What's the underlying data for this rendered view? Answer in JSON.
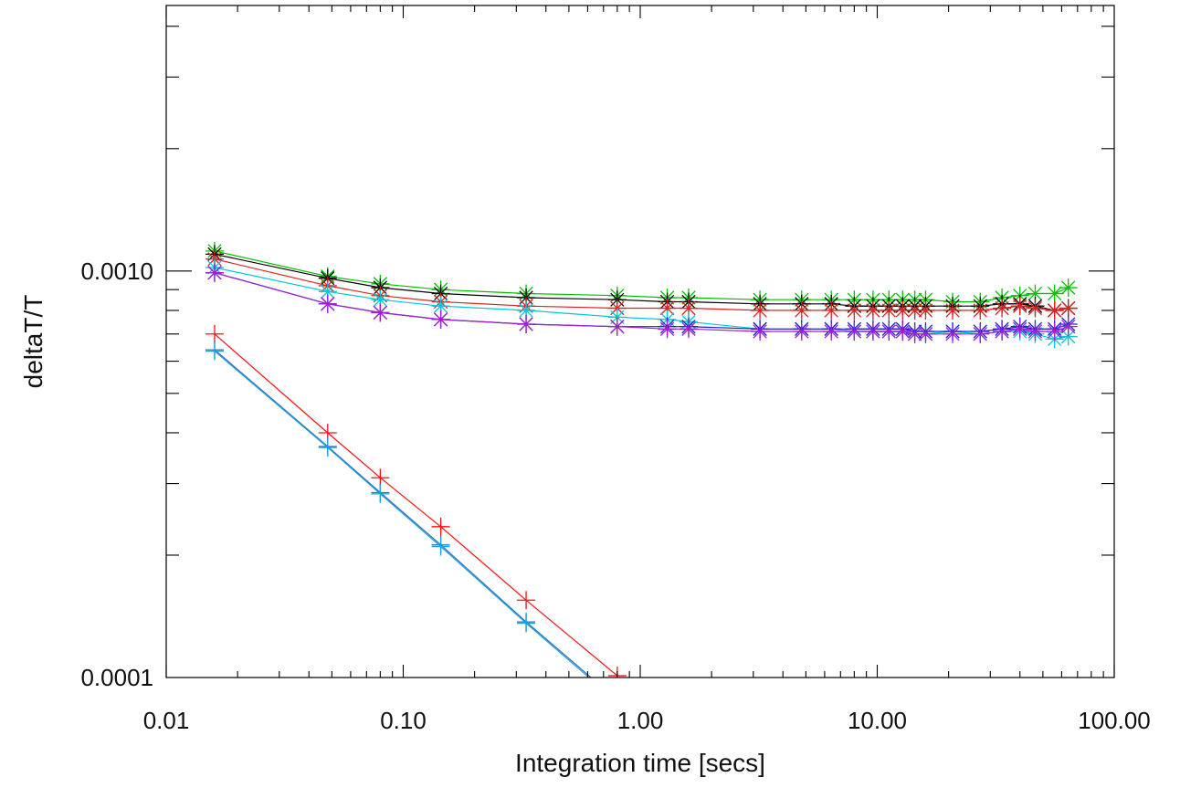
{
  "chart_data": {
    "type": "line",
    "title": "",
    "xlabel": "Integration time [secs]",
    "ylabel": "deltaT/T",
    "xscale": "log",
    "yscale": "log",
    "xlim": [
      0.01,
      100
    ],
    "ylim": [
      0.0001,
      0.0045
    ],
    "x_tick_labels": [
      "0.01",
      "0.10",
      "1.00",
      "10.00",
      "100.00"
    ],
    "x_tick_values": [
      0.01,
      0.1,
      1,
      10,
      100
    ],
    "y_tick_labels": [
      "0.0001",
      "0.0010"
    ],
    "y_tick_values": [
      0.0001,
      0.001
    ],
    "grid": false,
    "legend": "none",
    "series": [
      {
        "color": "#00c000",
        "marker": "asterisk",
        "x": [
          0.016,
          0.048,
          0.08,
          0.144,
          0.33,
          0.8,
          1.3,
          1.6,
          3.2,
          4.8,
          6.4,
          8.0,
          9.6,
          11.2,
          12.8,
          14.4,
          16.0,
          20.8,
          27.2,
          33.6,
          40.0,
          46.4,
          56.0,
          64.0
        ],
        "y": [
          0.00112,
          0.00097,
          0.00093,
          0.0009,
          0.00088,
          0.00087,
          0.00086,
          0.00086,
          0.00085,
          0.00085,
          0.00085,
          0.00085,
          0.00085,
          0.00085,
          0.00085,
          0.00085,
          0.00085,
          0.00084,
          0.00084,
          0.00086,
          0.00087,
          0.00088,
          0.00088,
          0.00091
        ]
      },
      {
        "color": "#000000",
        "marker": "asterisk",
        "x": [
          0.016,
          0.048,
          0.08,
          0.144,
          0.33,
          0.8,
          1.3,
          1.6,
          3.2,
          4.8,
          6.4,
          8.0,
          9.6,
          11.2,
          12.8,
          14.4,
          16.0,
          20.8,
          27.2,
          33.6,
          40.0,
          46.4,
          56.0,
          64.0
        ],
        "y": [
          0.0011,
          0.00096,
          0.00091,
          0.00088,
          0.00086,
          0.00085,
          0.00084,
          0.00084,
          0.00083,
          0.00083,
          0.00083,
          0.00082,
          0.00082,
          0.00082,
          0.00082,
          0.00082,
          0.00082,
          0.00082,
          0.00082,
          0.00083,
          0.00083,
          0.00082,
          0.0008,
          0.00081
        ]
      },
      {
        "color": "#e02020",
        "marker": "asterisk",
        "x": [
          0.016,
          0.048,
          0.08,
          0.144,
          0.33,
          0.8,
          1.3,
          1.6,
          3.2,
          4.8,
          6.4,
          8.0,
          9.6,
          11.2,
          12.8,
          14.4,
          16.0,
          20.8,
          27.2,
          33.6,
          40.0,
          46.4,
          56.0,
          64.0
        ],
        "y": [
          0.00107,
          0.00092,
          0.00087,
          0.00084,
          0.00082,
          0.00081,
          0.00081,
          0.00081,
          0.0008,
          0.0008,
          0.0008,
          0.0008,
          0.0008,
          0.0008,
          0.0008,
          0.0008,
          0.0008,
          0.0008,
          0.0008,
          0.00081,
          0.00082,
          0.00081,
          0.0008,
          0.00081
        ]
      },
      {
        "color": "#00c8d8",
        "marker": "asterisk",
        "x": [
          0.016,
          0.048,
          0.08,
          0.144,
          0.33,
          0.8,
          1.3,
          1.6,
          3.2,
          4.8,
          6.4,
          8.0,
          9.6,
          11.2,
          12.8,
          14.4,
          16.0,
          20.8,
          27.2,
          33.6,
          40.0,
          46.4,
          56.0,
          64.0
        ],
        "y": [
          0.00102,
          0.00089,
          0.00085,
          0.00082,
          0.0008,
          0.00077,
          0.00076,
          0.00075,
          0.00072,
          0.00072,
          0.00072,
          0.00071,
          0.00071,
          0.00071,
          0.00071,
          0.0007,
          0.0007,
          0.00071,
          0.0007,
          0.00071,
          0.00071,
          0.0007,
          0.00068,
          0.00069
        ]
      },
      {
        "color": "#2020d8",
        "marker": "asterisk",
        "x": [
          0.016,
          0.048,
          0.08,
          0.144,
          0.33,
          0.8,
          1.3,
          1.6,
          3.2,
          4.8,
          6.4,
          8.0,
          9.6,
          11.2,
          12.8,
          14.4,
          16.0,
          20.8,
          27.2,
          33.6,
          40.0,
          46.4,
          56.0,
          64.0
        ],
        "y": [
          0.00099,
          0.00083,
          0.00079,
          0.00076,
          0.00074,
          0.00073,
          0.00073,
          0.00073,
          0.00072,
          0.00072,
          0.00072,
          0.00072,
          0.00072,
          0.00072,
          0.00072,
          0.00071,
          0.00071,
          0.00071,
          0.00071,
          0.00072,
          0.00073,
          0.00072,
          0.00072,
          0.00074
        ]
      },
      {
        "color": "#a020d0",
        "marker": "asterisk",
        "x": [
          0.016,
          0.048,
          0.08,
          0.144,
          0.33,
          0.8,
          1.3,
          1.6,
          3.2,
          4.8,
          6.4,
          8.0,
          9.6,
          11.2,
          12.8,
          14.4,
          16.0,
          20.8,
          27.2,
          33.6,
          40.0,
          46.4,
          56.0,
          64.0
        ],
        "y": [
          0.00099,
          0.00083,
          0.00079,
          0.00076,
          0.00074,
          0.00073,
          0.00072,
          0.00072,
          0.00071,
          0.00071,
          0.00071,
          0.00071,
          0.00071,
          0.00071,
          0.00071,
          0.0007,
          0.0007,
          0.0007,
          0.0007,
          0.00071,
          0.00072,
          0.00071,
          0.00071,
          0.00073
        ]
      },
      {
        "color": "#ff1010",
        "marker": "plus",
        "x": [
          0.016,
          0.048,
          0.08,
          0.144,
          0.33,
          0.8
        ],
        "y": [
          0.0007,
          0.0004,
          0.00031,
          0.000235,
          0.000155,
          0.000101
        ]
      },
      {
        "color": "#3070c0",
        "marker": "plus",
        "x": [
          0.016,
          0.048,
          0.08,
          0.144,
          0.33,
          0.8
        ],
        "y": [
          0.00064,
          0.00037,
          0.000285,
          0.000212,
          0.000137,
          8.8e-05
        ]
      },
      {
        "color": "#20a0e0",
        "marker": "plus",
        "x": [
          0.016,
          0.048,
          0.08,
          0.144,
          0.33,
          0.8
        ],
        "y": [
          0.000635,
          0.000368,
          0.000283,
          0.00021,
          0.000136,
          8.7e-05
        ]
      }
    ]
  }
}
